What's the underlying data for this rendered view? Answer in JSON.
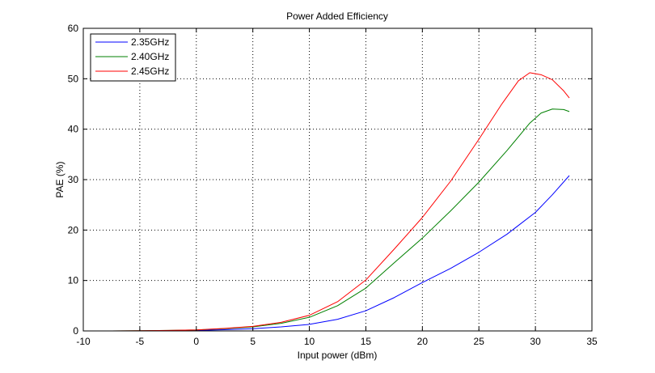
{
  "chart_data": {
    "type": "line",
    "title": "Power Added Efficiency",
    "xlabel": "Input power (dBm)",
    "ylabel": "PAE (%)",
    "xlim": [
      -10,
      35
    ],
    "ylim": [
      0,
      60
    ],
    "xticks": [
      -10,
      -5,
      0,
      5,
      10,
      15,
      20,
      25,
      30,
      35
    ],
    "yticks": [
      0,
      10,
      20,
      30,
      40,
      50,
      60
    ],
    "grid": true,
    "legend_position": "top-left",
    "series": [
      {
        "name": "2.35GHz",
        "color": "#0000ff",
        "x": [
          -7.5,
          -5,
          -2.5,
          0,
          2.5,
          5,
          7.5,
          10,
          12.5,
          15,
          17.5,
          20,
          22.5,
          25,
          27.5,
          30,
          31.5,
          33
        ],
        "y": [
          0,
          0,
          0.05,
          0.1,
          0.25,
          0.45,
          0.8,
          1.3,
          2.3,
          4.0,
          6.6,
          9.6,
          12.4,
          15.6,
          19.2,
          23.5,
          27.0,
          30.8
        ]
      },
      {
        "name": "2.40GHz",
        "color": "#008000",
        "x": [
          -7.5,
          -5,
          -2.5,
          0,
          2.5,
          5,
          7.5,
          10,
          12.5,
          15,
          17.5,
          20,
          22.5,
          25,
          27.5,
          29.5,
          30.5,
          31.5,
          32.5,
          33
        ],
        "y": [
          0,
          0.05,
          0.1,
          0.2,
          0.45,
          0.8,
          1.5,
          2.7,
          5.0,
          8.5,
          13.5,
          18.4,
          23.8,
          29.5,
          35.8,
          41.2,
          43.2,
          44.0,
          43.9,
          43.5
        ]
      },
      {
        "name": "2.45GHz",
        "color": "#ff0000",
        "x": [
          -7.5,
          -5,
          -2.5,
          0,
          2.5,
          5,
          7.5,
          10,
          12.5,
          15,
          17.5,
          20,
          22.5,
          25,
          27,
          28.5,
          29.5,
          30.5,
          31.5,
          32.5,
          33
        ],
        "y": [
          0,
          0.05,
          0.1,
          0.2,
          0.5,
          0.9,
          1.7,
          3.1,
          5.8,
          10.1,
          16.2,
          22.5,
          29.7,
          38.0,
          44.9,
          49.6,
          51.2,
          50.8,
          49.8,
          47.6,
          46.2
        ]
      }
    ]
  }
}
